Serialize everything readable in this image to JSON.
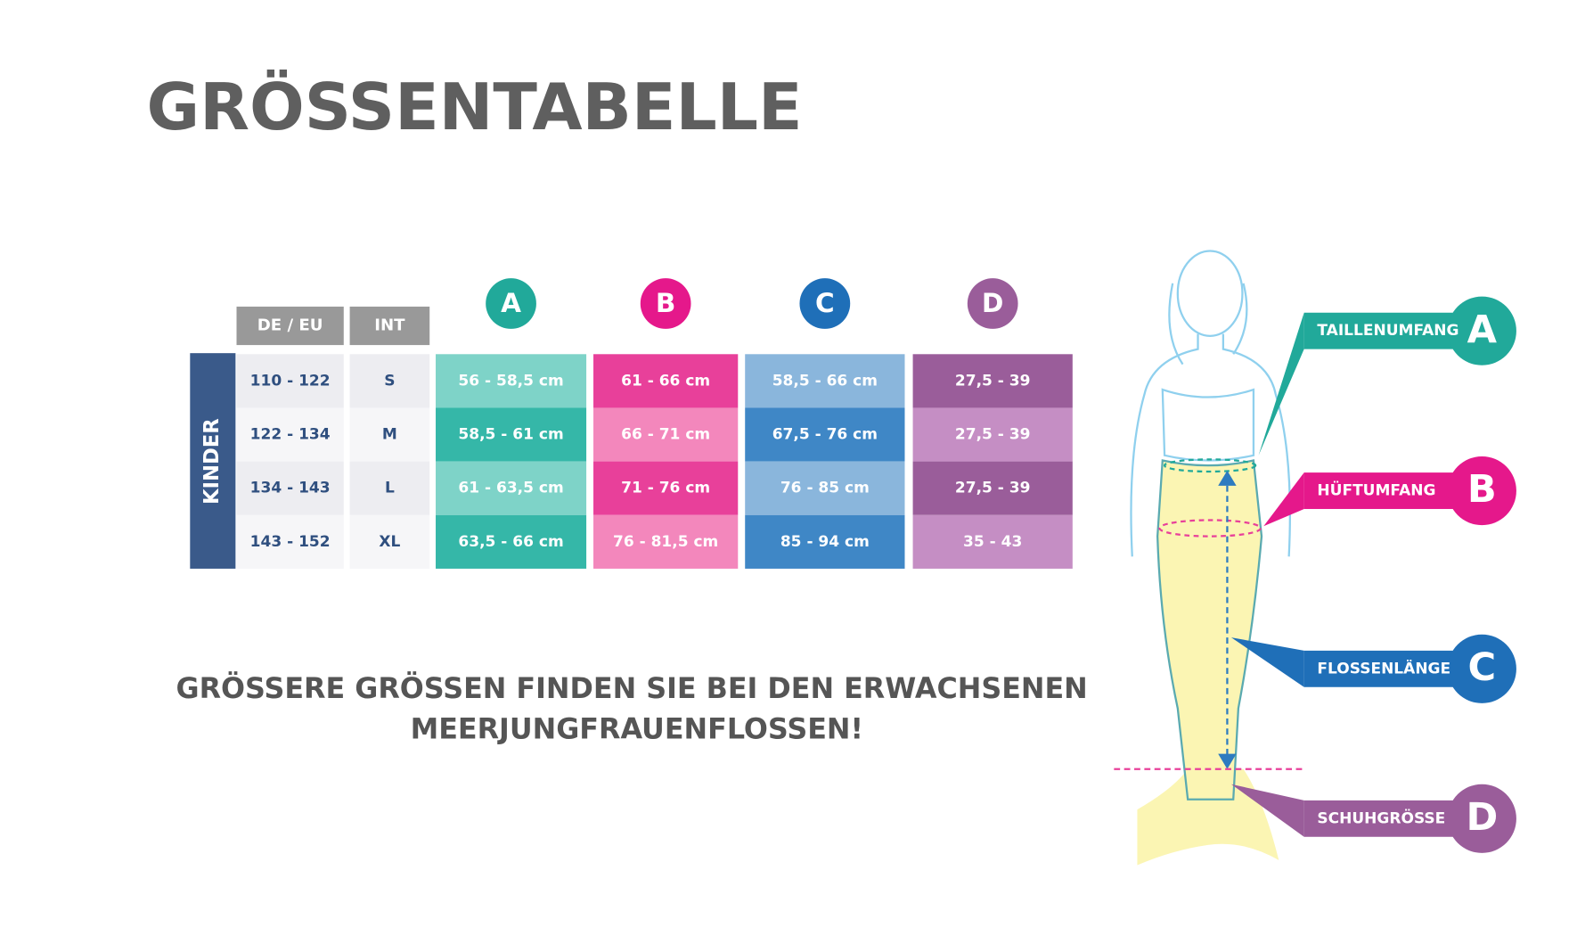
{
  "title": "GRÖSSENTABELLE",
  "table": {
    "group_label": "KINDER",
    "header": [
      "DE / EU",
      "INT"
    ],
    "column_letters": [
      "A",
      "B",
      "C",
      "D"
    ],
    "rows": [
      [
        "110 - 122",
        "S",
        "56 - 58,5 cm",
        "61 - 66 cm",
        "58,5 - 66 cm",
        "27,5 - 39"
      ],
      [
        "122 - 134",
        "M",
        "58,5 - 61 cm",
        "66 - 71 cm",
        "67,5 - 76 cm",
        "27,5 - 39"
      ],
      [
        "134 - 143",
        "L",
        "61 - 63,5 cm",
        "71 - 76 cm",
        "76 - 85 cm",
        "27,5 - 39"
      ],
      [
        "143 - 152",
        "XL",
        "63,5 - 66 cm",
        "76 - 81,5 cm",
        "85 - 94 cm",
        "35 - 43"
      ]
    ]
  },
  "note": [
    "GRÖSSERE GRÖSSEN FINDEN SIE BEI DEN ERWACHSENEN",
    "MEERJUNGFRAUENFLOSSEN!"
  ],
  "legend": [
    {
      "label": "TAILLENUMFANG",
      "letter": "A"
    },
    {
      "label": "HÜFTUMFANG",
      "letter": "B"
    },
    {
      "label": "FLOSSENLÄNGE",
      "letter": "C"
    },
    {
      "label": "SCHUHGRÖSSE",
      "letter": "D"
    }
  ]
}
